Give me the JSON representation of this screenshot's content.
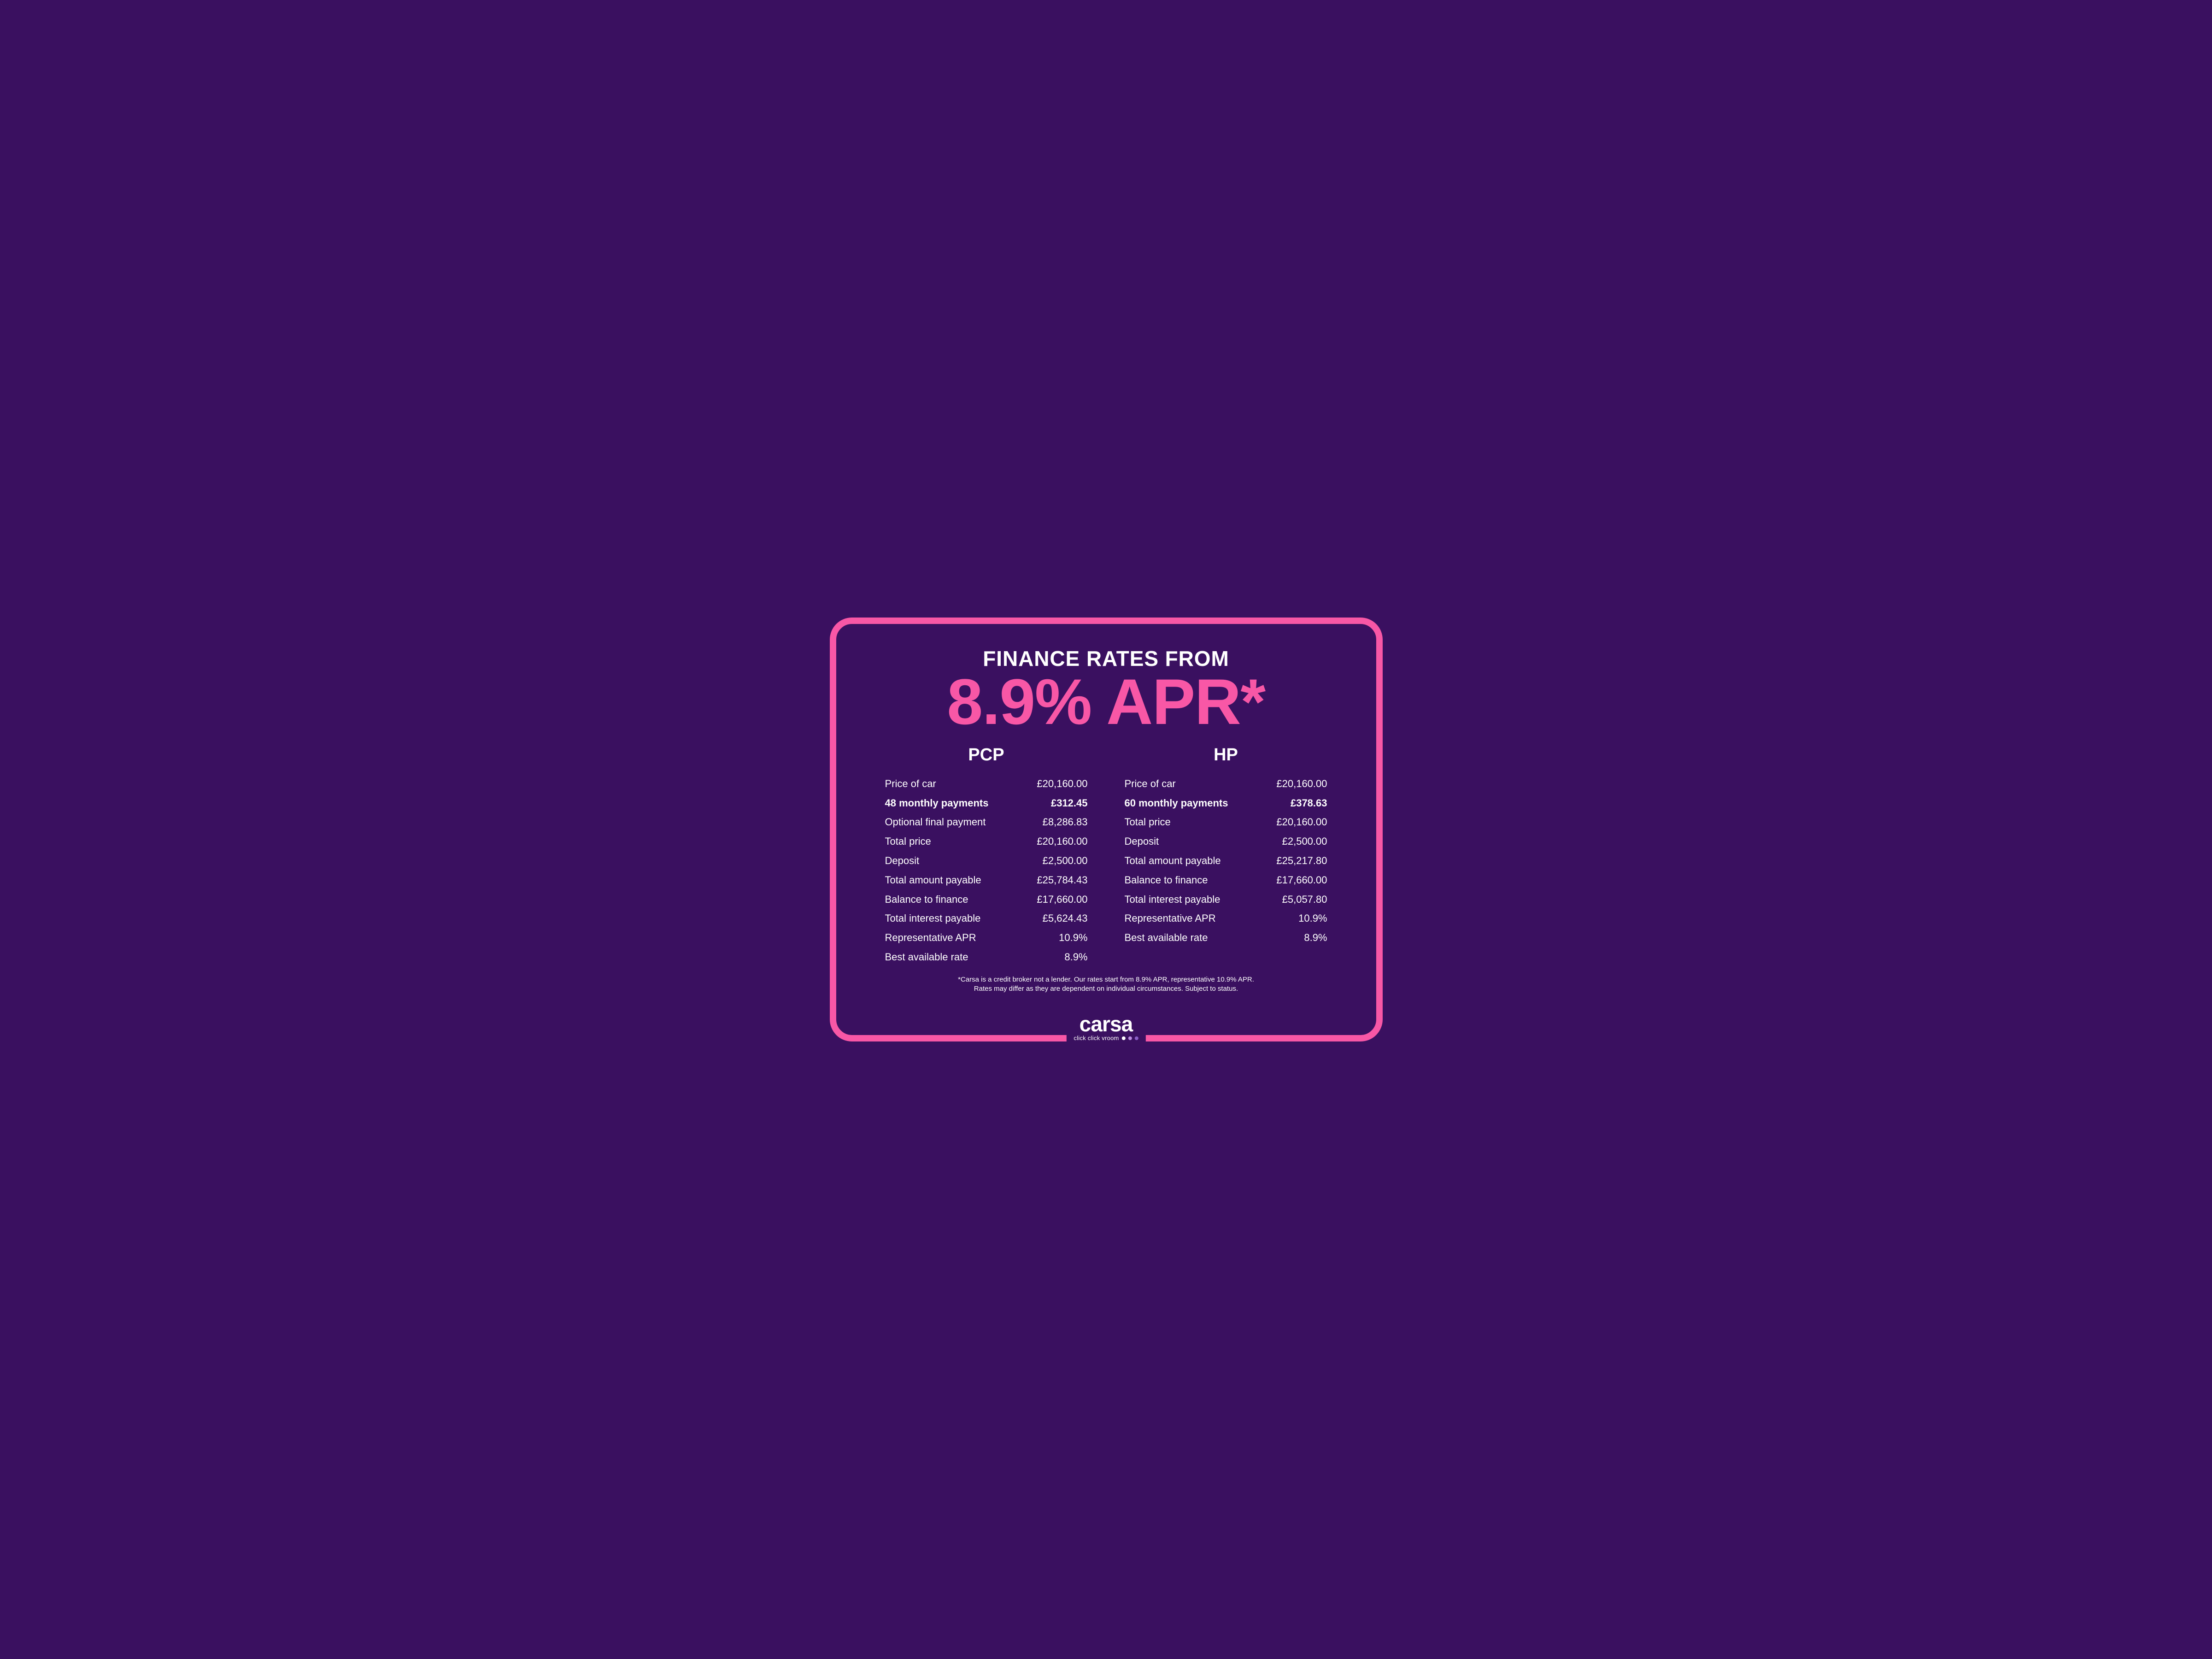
{
  "colors": {
    "background": "#3a1060",
    "border": "#f857a6",
    "text": "#ffffff",
    "accent": "#f857a6",
    "dot1": "#ffffff",
    "dot2": "#b98adf",
    "dot3": "#8b5ec7"
  },
  "header": {
    "line1": "FINANCE RATES FROM",
    "line2": "8.9% APR*"
  },
  "columns": [
    {
      "title": "PCP",
      "rows": [
        {
          "label": "Price of car",
          "value": "£20,160.00",
          "bold": false
        },
        {
          "label": "48 monthly payments",
          "value": "£312.45",
          "bold": true
        },
        {
          "label": "Optional final payment",
          "value": "£8,286.83",
          "bold": false
        },
        {
          "label": "Total price",
          "value": "£20,160.00",
          "bold": false
        },
        {
          "label": "Deposit",
          "value": "£2,500.00",
          "bold": false
        },
        {
          "label": "Total amount payable",
          "value": "£25,784.43",
          "bold": false
        },
        {
          "label": "Balance to finance",
          "value": "£17,660.00",
          "bold": false
        },
        {
          "label": "Total interest payable",
          "value": "£5,624.43",
          "bold": false
        },
        {
          "label": "Representative APR",
          "value": "10.9%",
          "bold": false
        },
        {
          "label": "Best available rate",
          "value": "8.9%",
          "bold": false
        }
      ]
    },
    {
      "title": "HP",
      "rows": [
        {
          "label": "Price of car",
          "value": "£20,160.00",
          "bold": false
        },
        {
          "label": "60 monthly payments",
          "value": "£378.63",
          "bold": true
        },
        {
          "label": "Total price",
          "value": "£20,160.00",
          "bold": false
        },
        {
          "label": "Deposit",
          "value": "£2,500.00",
          "bold": false
        },
        {
          "label": "Total amount payable",
          "value": "£25,217.80",
          "bold": false
        },
        {
          "label": "Balance to finance",
          "value": "£17,660.00",
          "bold": false
        },
        {
          "label": "Total interest payable",
          "value": "£5,057.80",
          "bold": false
        },
        {
          "label": "Representative APR",
          "value": "10.9%",
          "bold": false
        },
        {
          "label": "Best available rate",
          "value": "8.9%",
          "bold": false
        }
      ]
    }
  ],
  "disclaimer": {
    "line1": "*Carsa is a credit broker not a lender. Our rates start from 8.9% APR, representative 10.9% APR.",
    "line2": "Rates may differ as they are dependent on individual circumstances. Subject to status."
  },
  "brand": {
    "name": "carsa",
    "tagline": "click click vroom"
  }
}
